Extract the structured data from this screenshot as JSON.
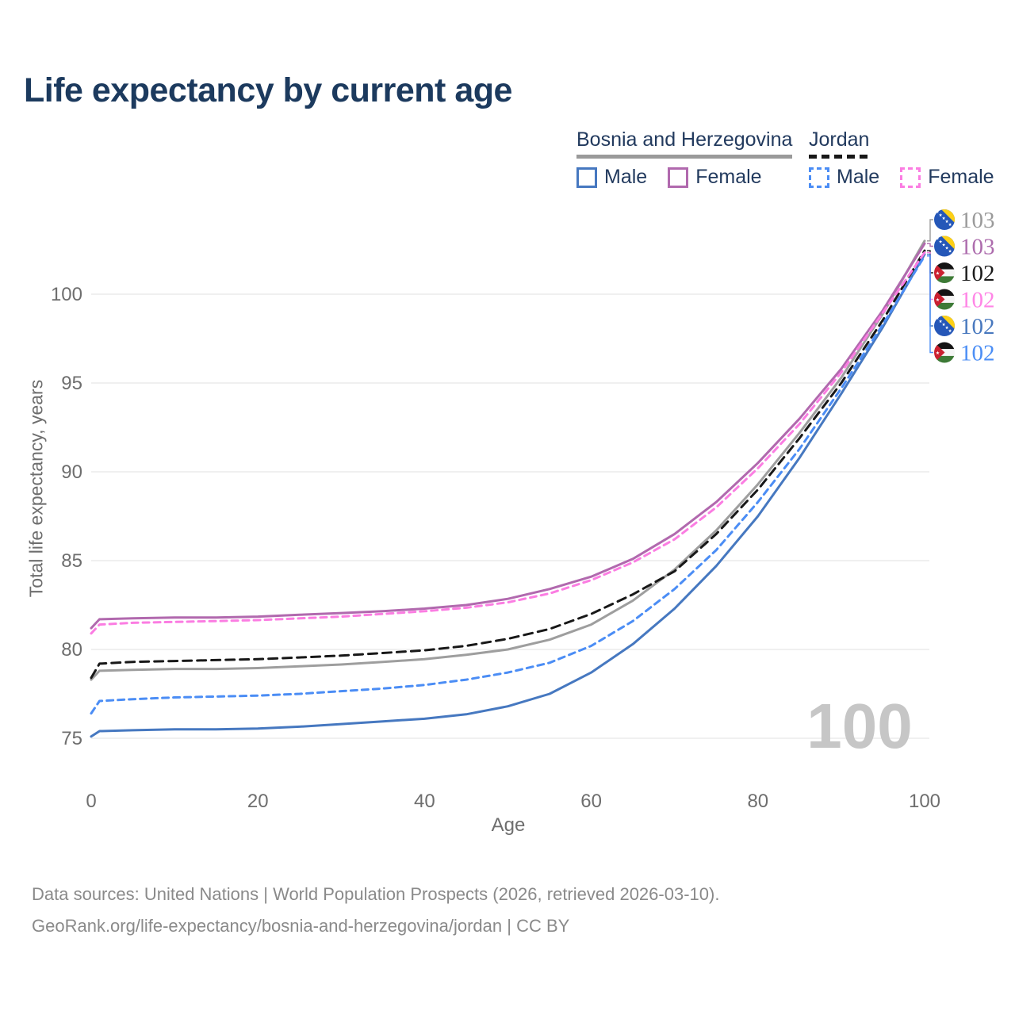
{
  "title": "Life expectancy by current age",
  "legend": {
    "groups": [
      {
        "title": "Bosnia and Herzegovina",
        "line_style": "solid",
        "line_color": "#9a9a9a",
        "items": [
          {
            "label": "Male",
            "color": "#4678c0",
            "dashed": false
          },
          {
            "label": "Female",
            "color": "#b169ae",
            "dashed": false
          }
        ]
      },
      {
        "title": "Jordan",
        "line_style": "dashed",
        "line_color": "#181818",
        "items": [
          {
            "label": "Male",
            "color": "#4b8df5",
            "dashed": true
          },
          {
            "label": "Female",
            "color": "#fb7de2",
            "dashed": true
          }
        ]
      }
    ]
  },
  "chart_data": {
    "type": "line",
    "title": "Life expectancy by current age",
    "xlabel": "Age",
    "ylabel": "Total life expectancy, years",
    "xlim": [
      0,
      100
    ],
    "ylim": [
      73.5,
      104
    ],
    "x_ticks": [
      0,
      20,
      40,
      60,
      80,
      100
    ],
    "y_ticks": [
      75,
      80,
      85,
      90,
      95,
      100
    ],
    "grid": "horizontal",
    "legend_position": "top-right",
    "x": [
      0,
      1,
      5,
      10,
      15,
      20,
      25,
      30,
      35,
      40,
      45,
      50,
      55,
      60,
      65,
      70,
      75,
      80,
      85,
      90,
      95,
      100
    ],
    "series": [
      {
        "id": "bosnia-total",
        "name": "Bosnia and Herzegovina Total",
        "country": "Bosnia and Herzegovina",
        "group": "Total",
        "color": "#9e9e9e",
        "dash": "solid",
        "values": [
          78.3,
          78.8,
          78.85,
          78.9,
          78.9,
          78.95,
          79.05,
          79.15,
          79.3,
          79.45,
          79.7,
          80.0,
          80.55,
          81.4,
          82.75,
          84.5,
          86.7,
          89.3,
          92.2,
          95.3,
          98.9,
          103.0
        ]
      },
      {
        "id": "bosnia-female",
        "name": "Bosnia and Herzegovina Female",
        "country": "Bosnia and Herzegovina",
        "group": "Female",
        "color": "#b169ae",
        "dash": "solid",
        "values": [
          81.2,
          81.7,
          81.75,
          81.8,
          81.8,
          81.85,
          81.95,
          82.05,
          82.15,
          82.3,
          82.5,
          82.85,
          83.4,
          84.1,
          85.1,
          86.5,
          88.3,
          90.5,
          93.0,
          95.8,
          99.1,
          102.85
        ]
      },
      {
        "id": "bosnia-male",
        "name": "Bosnia and Herzegovina Male",
        "country": "Bosnia and Herzegovina",
        "group": "Male",
        "color": "#4678c0",
        "dash": "solid",
        "values": [
          75.1,
          75.4,
          75.45,
          75.5,
          75.5,
          75.55,
          75.65,
          75.8,
          75.95,
          76.1,
          76.35,
          76.8,
          77.5,
          78.7,
          80.3,
          82.3,
          84.7,
          87.5,
          90.8,
          94.4,
          98.15,
          102.25
        ]
      },
      {
        "id": "jordan-total",
        "name": "Jordan Total",
        "country": "Jordan",
        "group": "Total",
        "color": "#181818",
        "dash": "11 7",
        "values": [
          78.4,
          79.2,
          79.3,
          79.35,
          79.4,
          79.45,
          79.55,
          79.65,
          79.8,
          79.95,
          80.2,
          80.6,
          81.15,
          82.0,
          83.1,
          84.4,
          86.5,
          89.0,
          91.9,
          95.0,
          98.55,
          102.45
        ]
      },
      {
        "id": "jordan-female",
        "name": "Jordan Female",
        "country": "Jordan",
        "group": "Female",
        "color": "#fb7de2",
        "dash": "8 6",
        "values": [
          80.9,
          81.4,
          81.5,
          81.55,
          81.6,
          81.65,
          81.75,
          81.85,
          82.0,
          82.15,
          82.35,
          82.65,
          83.15,
          83.9,
          84.9,
          86.2,
          88.0,
          90.2,
          92.7,
          95.6,
          98.95,
          102.35
        ]
      },
      {
        "id": "jordan-male",
        "name": "Jordan Male",
        "country": "Jordan",
        "group": "Male",
        "color": "#4b8df5",
        "dash": "8 6",
        "values": [
          76.4,
          77.1,
          77.2,
          77.3,
          77.35,
          77.4,
          77.5,
          77.65,
          77.8,
          78.0,
          78.3,
          78.7,
          79.25,
          80.2,
          81.6,
          83.4,
          85.6,
          88.3,
          91.3,
          94.7,
          98.3,
          102.15
        ]
      }
    ],
    "end_labels": [
      {
        "series": "bosnia-total",
        "flag": "bosnia",
        "text": "103",
        "color": "#9a9a9a"
      },
      {
        "series": "bosnia-female",
        "flag": "bosnia",
        "text": "103",
        "color": "#ad6cad"
      },
      {
        "series": "jordan-total",
        "flag": "jordan",
        "text": "102",
        "color": "#1a1a1a"
      },
      {
        "series": "jordan-female",
        "flag": "jordan",
        "text": "102",
        "color": "#ff85e6"
      },
      {
        "series": "bosnia-male",
        "flag": "bosnia",
        "text": "102",
        "color": "#4878be"
      },
      {
        "series": "jordan-male",
        "flag": "jordan",
        "text": "102",
        "color": "#4b8ef5"
      }
    ],
    "watermark": "100"
  },
  "footer": {
    "line1": "Data sources: United Nations | World Population Prospects (2026, retrieved 2026-03-10).",
    "line2": "GeoRank.org/life-expectancy/bosnia-and-herzegovina/jordan | CC BY"
  },
  "colors": {
    "title": "#1c3a5e",
    "legend_text": "#223a5e",
    "axis_text": "#6e6e6e",
    "grid": "#ececec",
    "watermark": "#c6c6c6",
    "footer_text": "#8a8a8a"
  }
}
